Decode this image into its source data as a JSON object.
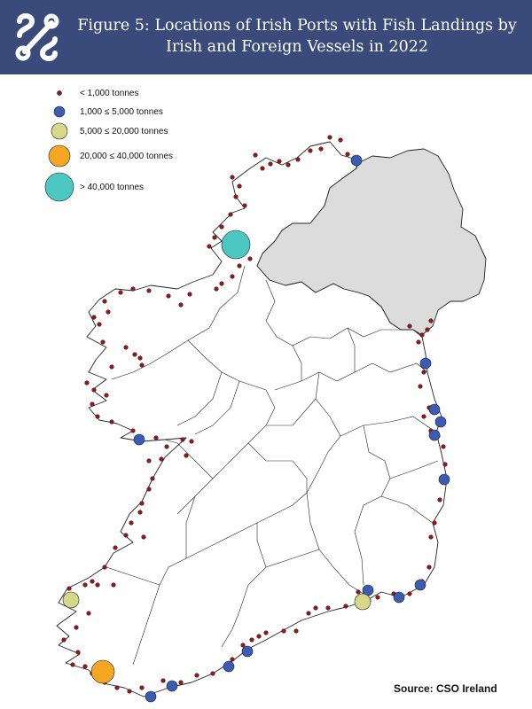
{
  "header": {
    "title_line1": "Figure 5: Locations of Irish Ports with Fish Landings by",
    "title_line2": "Irish and Foreign Vessels in 2022"
  },
  "legend": [
    {
      "label": "< 1,000 tonnes",
      "color": "#8b1a1a",
      "size_class": "xs"
    },
    {
      "label": "1,000 ≤ 5,000 tonnes",
      "color": "#3b5bb5",
      "size_class": "s"
    },
    {
      "label": "5,000 ≤ 20,000 tonnes",
      "color": "#d7d98a",
      "size_class": "m"
    },
    {
      "label": "20,000 ≤ 40,000 tonnes",
      "color": "#f5a623",
      "size_class": "l"
    },
    {
      "label": "> 40,000 tonnes",
      "color": "#4cc7c2",
      "size_class": "xl"
    }
  ],
  "source": "Source:  CSO Ireland",
  "colors": {
    "header_bg": "#3a4a7a",
    "northern_ireland_fill": "#dcdcdc",
    "land_fill": "#ffffff",
    "border": "#222222"
  }
}
